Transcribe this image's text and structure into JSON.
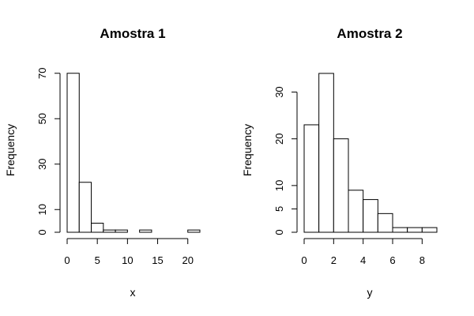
{
  "chart_data": [
    {
      "type": "bar",
      "title": "Amostra 1",
      "xlabel": "x",
      "ylabel": "Frequency",
      "bin_edges": [
        0,
        2,
        4,
        6,
        8,
        10,
        12,
        14,
        16,
        18,
        20,
        22
      ],
      "values": [
        70,
        22,
        4,
        1,
        1,
        0,
        1,
        0,
        0,
        0,
        1
      ],
      "xticks": [
        0,
        5,
        10,
        15,
        20
      ],
      "yticks": [
        0,
        10,
        30,
        50,
        70
      ],
      "xlim": [
        0,
        22
      ],
      "ylim": [
        0,
        72
      ],
      "grid": false
    },
    {
      "type": "bar",
      "title": "Amostra 2",
      "xlabel": "y",
      "ylabel": "Frequency",
      "bin_edges": [
        0,
        1,
        2,
        3,
        4,
        5,
        6,
        7,
        8,
        9
      ],
      "values": [
        23,
        34,
        20,
        9,
        7,
        4,
        1,
        1,
        1
      ],
      "xticks": [
        0,
        2,
        4,
        6,
        8
      ],
      "yticks": [
        0,
        5,
        10,
        20,
        30
      ],
      "xlim": [
        0,
        9
      ],
      "ylim": [
        0,
        35
      ],
      "grid": false
    }
  ]
}
